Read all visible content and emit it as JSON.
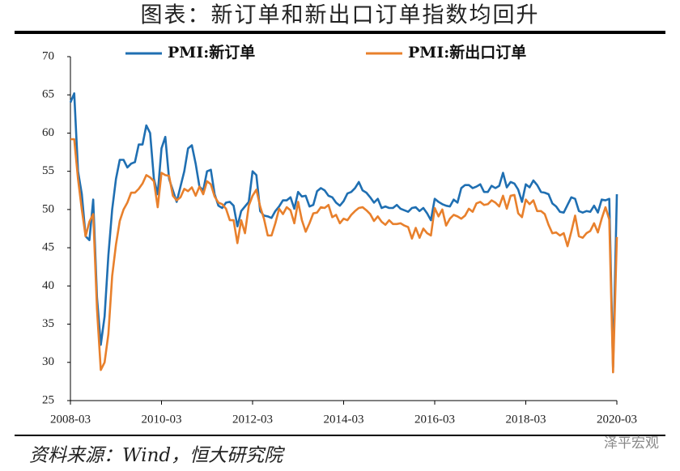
{
  "chart_data": {
    "type": "line",
    "title": "图表：新订单和新出口订单指数均回升",
    "source": "资料来源：Wind，恒大研究院",
    "watermark": "泽平宏观",
    "categories": [
      "2008-03",
      null,
      null,
      null,
      null,
      null,
      null,
      null,
      null,
      null,
      null,
      null,
      null,
      null,
      null,
      null,
      null,
      null,
      null,
      null,
      null,
      null,
      null,
      null,
      "2010-03",
      null,
      null,
      null,
      null,
      null,
      null,
      null,
      null,
      null,
      null,
      null,
      null,
      null,
      null,
      null,
      null,
      null,
      null,
      null,
      null,
      null,
      null,
      null,
      "2012-03",
      null,
      null,
      null,
      null,
      null,
      null,
      null,
      null,
      null,
      null,
      null,
      null,
      null,
      null,
      null,
      null,
      null,
      null,
      null,
      null,
      null,
      null,
      null,
      "2014-03",
      null,
      null,
      null,
      null,
      null,
      null,
      null,
      null,
      null,
      null,
      null,
      null,
      null,
      null,
      null,
      null,
      null,
      null,
      null,
      null,
      null,
      null,
      null,
      "2016-03",
      null,
      null,
      null,
      null,
      null,
      null,
      null,
      null,
      null,
      null,
      null,
      null,
      null,
      null,
      null,
      null,
      null,
      null,
      null,
      null,
      null,
      null,
      null,
      "2018-03",
      null,
      null,
      null,
      null,
      null,
      null,
      null,
      null,
      null,
      null,
      null,
      null,
      null,
      null,
      null,
      null,
      null,
      null,
      null,
      null,
      null,
      null,
      null,
      "2020-03"
    ],
    "series": [
      {
        "name": "PMI:新订单",
        "color": "#1f6fb2",
        "values": [
          64,
          65.2,
          55,
          52,
          46.5,
          46,
          51.3,
          38.5,
          32.3,
          36,
          44,
          50,
          54,
          56.5,
          56.5,
          55.5,
          56,
          56.2,
          58.5,
          58.5,
          61,
          60,
          54,
          52,
          58,
          59.5,
          54,
          52.5,
          51,
          53,
          55,
          58,
          58.4,
          56,
          53,
          52.5,
          55,
          55.2,
          52,
          50.5,
          50.2,
          50.9,
          51,
          50.5,
          47.8,
          49.8,
          50.4,
          51,
          55,
          54.5,
          49.8,
          49.2,
          49.1,
          48.9,
          49.8,
          50.4,
          51.2,
          51.2,
          51.6,
          50.1,
          52.3,
          51.7,
          51.8,
          50.4,
          50.6,
          52.4,
          52.8,
          52.5,
          51.8,
          51.6,
          50.9,
          50.5,
          51.1,
          52.1,
          52.3,
          52.8,
          53.6,
          52.5,
          52.2,
          51.6,
          50.9,
          51.4,
          50.2,
          50.4,
          50.2,
          50.2,
          50.6,
          50.1,
          49.9,
          49.7,
          50.2,
          50.3,
          49.8,
          50.2,
          49.5,
          48.6,
          51.4,
          51,
          50.7,
          50.5,
          50.4,
          51.3,
          50.9,
          52.8,
          53.2,
          53.2,
          52.8,
          53,
          53.3,
          52.3,
          52.3,
          53.1,
          52.8,
          53.1,
          54.8,
          52.9,
          53.6,
          53.4,
          52.6,
          51,
          53.3,
          52.9,
          53.8,
          53.2,
          52.3,
          52.2,
          52,
          50.8,
          50.4,
          49.7,
          49.6,
          50.6,
          51.6,
          51.4,
          49.8,
          49.6,
          49.8,
          49.7,
          50.5,
          49.6,
          51.3,
          51.2,
          51.4,
          29.3,
          52
        ]
      },
      {
        "name": "PMI:新出口订单",
        "color": "#e8802c",
        "values": [
          59.2,
          59.2,
          54,
          50,
          46.5,
          48.4,
          49.4,
          37,
          29,
          30,
          33.7,
          41.3,
          45.4,
          48.5,
          50,
          50.9,
          52.2,
          52.2,
          52.7,
          53.4,
          54.5,
          54.2,
          53.7,
          50.3,
          54.8,
          54.5,
          54.4,
          51.8,
          51.2,
          51.6,
          52.7,
          52.4,
          52.9,
          51.8,
          53,
          52,
          53.7,
          53.3,
          51.7,
          50.9,
          50.7,
          50.1,
          48.6,
          48.6,
          45.6,
          48.6,
          46.9,
          50.5,
          51.8,
          52.6,
          50.4,
          48.8,
          46.6,
          46.6,
          48.2,
          50.1,
          49.4,
          50.3,
          49.9,
          48.2,
          51,
          48.6,
          47.1,
          48.2,
          49.5,
          49.6,
          50.3,
          50.2,
          50.6,
          49,
          49.3,
          48.2,
          48.8,
          48.6,
          49.3,
          49.8,
          50.2,
          50.3,
          49.9,
          49.4,
          48.5,
          49.1,
          48.4,
          48,
          48.6,
          48.1,
          48.1,
          48.2,
          47.9,
          47.7,
          46.2,
          47.6,
          46.3,
          47.5,
          46.9,
          46.6,
          50.2,
          49.1,
          50,
          47.9,
          48.8,
          49.3,
          49.1,
          48.8,
          49.2,
          50.1,
          49.7,
          50.8,
          51,
          50.6,
          50.7,
          51.2,
          50.9,
          50.4,
          51.8,
          50.1,
          51.8,
          51.9,
          49.5,
          49,
          51.3,
          50.7,
          51.2,
          49.8,
          49.8,
          49.4,
          48,
          46.9,
          47,
          46.6,
          46.9,
          45.2,
          47.1,
          49.2,
          46.5,
          46.3,
          46.9,
          47.2,
          48.2,
          47,
          48.8,
          50.3,
          48.7,
          28.7,
          46.4
        ]
      }
    ],
    "ylim": [
      25,
      70
    ],
    "yticks": [
      25,
      30,
      35,
      40,
      45,
      50,
      55,
      60,
      65,
      70
    ],
    "grid": false
  }
}
